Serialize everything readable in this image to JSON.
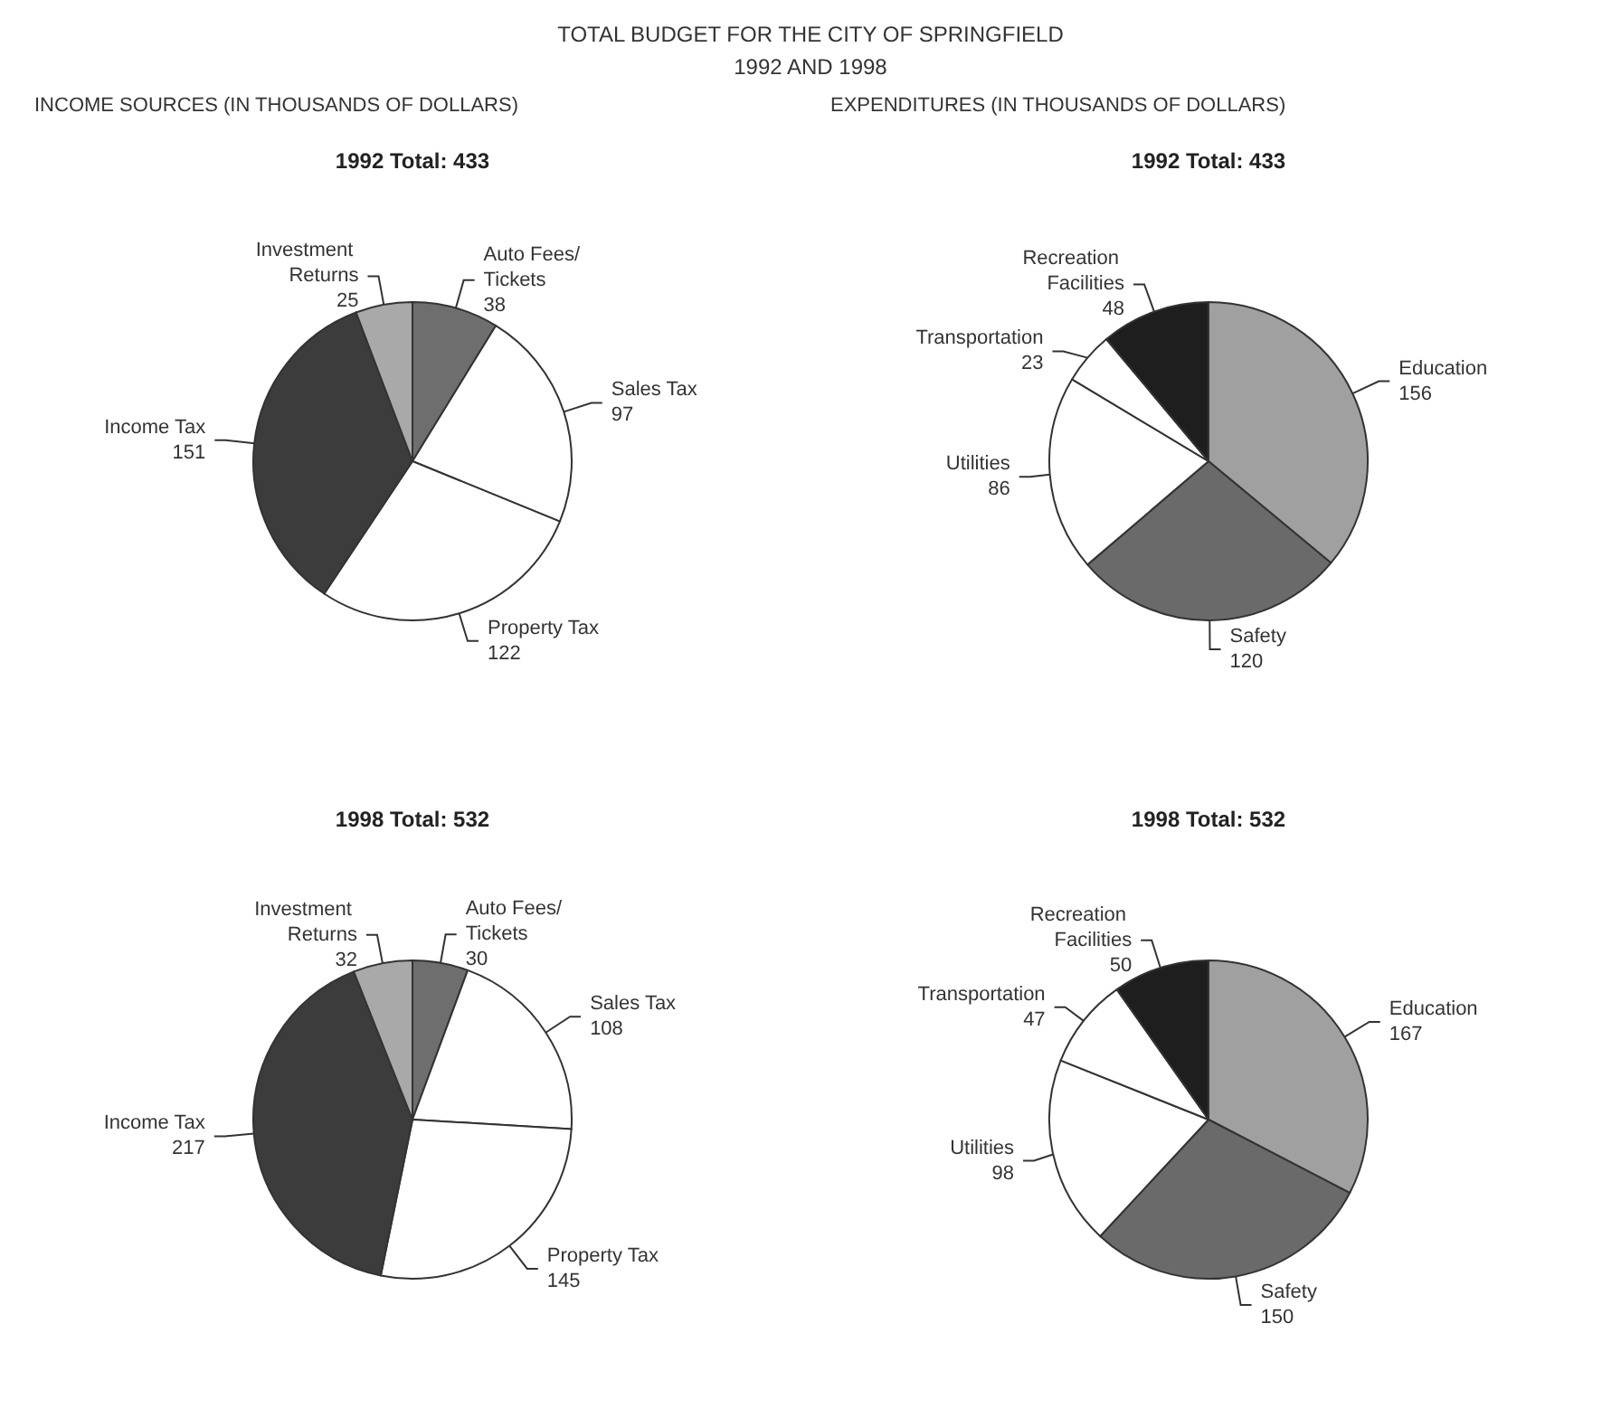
{
  "chart_data": [
    {
      "type": "other",
      "title": "TOTAL BUDGET FOR THE CITY OF SPRINGFIELD",
      "subtitle": "1992 AND 1998"
    },
    {
      "type": "pie",
      "subtitle": "INCOME SOURCES (IN THOUSANDS OF DOLLARS)",
      "title": "1992 Total: 433",
      "categories": [
        "Auto Fees/Tickets",
        "Sales Tax",
        "Property Tax",
        "Income Tax",
        "Investment Returns"
      ],
      "values": [
        38,
        97,
        122,
        151,
        25
      ],
      "colors": [
        "#6e6e6e",
        "#ffffff",
        "#ffffff",
        "#3c3c3c",
        "#a9a9a9"
      ],
      "data_labels": true
    },
    {
      "type": "pie",
      "subtitle": "EXPENDITURES (IN THOUSANDS OF DOLLARS)",
      "title": "1992 Total: 433",
      "categories": [
        "Education",
        "Safety",
        "Utilities",
        "Transportation",
        "Recreation Facilities"
      ],
      "values": [
        156,
        120,
        86,
        23,
        48
      ],
      "colors": [
        "#a0a0a0",
        "#6a6a6a",
        "#ffffff",
        "#ffffff",
        "#1e1e1e"
      ],
      "data_labels": true
    },
    {
      "type": "pie",
      "title": "1998 Total: 532",
      "categories": [
        "Auto Fees/Tickets",
        "Sales Tax",
        "Property Tax",
        "Income Tax",
        "Investment Returns"
      ],
      "values": [
        30,
        108,
        145,
        217,
        32
      ],
      "colors": [
        "#6e6e6e",
        "#ffffff",
        "#ffffff",
        "#3c3c3c",
        "#a9a9a9"
      ],
      "data_labels": true
    },
    {
      "type": "pie",
      "title": "1998 Total: 532",
      "categories": [
        "Education",
        "Safety",
        "Utilities",
        "Transportation",
        "Recreation Facilities"
      ],
      "values": [
        167,
        150,
        98,
        47,
        50
      ],
      "colors": [
        "#a0a0a0",
        "#6a6a6a",
        "#ffffff",
        "#ffffff",
        "#1e1e1e"
      ],
      "data_labels": true
    }
  ]
}
